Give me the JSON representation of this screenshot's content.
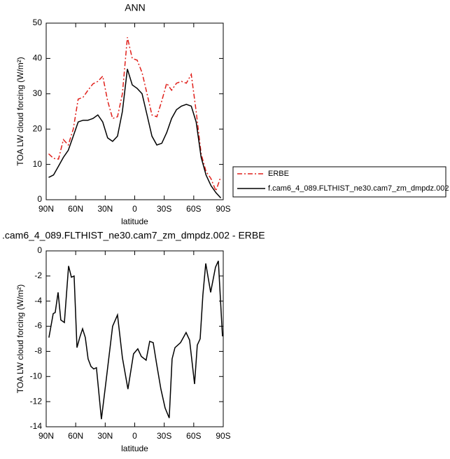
{
  "chart_data": [
    {
      "type": "line",
      "title": "ANN",
      "xlabel": "latitude",
      "ylabel": "TOA LW cloud forcing (W/m²)",
      "x": [
        87.5,
        82.5,
        77.5,
        72.5,
        67.5,
        62.5,
        57.5,
        52.5,
        47.5,
        42.5,
        37.5,
        32.5,
        27.5,
        22.5,
        17.5,
        12.5,
        7.5,
        2.5,
        -2.5,
        -7.5,
        -12.5,
        -17.5,
        -22.5,
        -27.5,
        -32.5,
        -37.5,
        -42.5,
        -47.5,
        -52.5,
        -57.5,
        -62.5,
        -67.5,
        -72.5,
        -77.5,
        -82.5,
        -87.5
      ],
      "series": [
        {
          "name": "ERBE",
          "color": "#e0201b",
          "line_style": "dashed",
          "values": [
            13,
            11.7,
            11.5,
            17,
            15.5,
            20,
            28.5,
            29,
            31,
            32.8,
            33.5,
            35,
            28,
            23,
            23.5,
            30,
            46,
            40,
            39.5,
            36,
            30,
            24,
            23.5,
            28,
            33,
            31,
            33,
            33.5,
            33,
            35.5,
            25,
            13,
            8,
            6,
            2.5,
            6.5
          ]
        },
        {
          "name": "f.cam6_4_089.FLTHIST_ne30.cam7_zm_dmpdz.002",
          "color": "#000000",
          "line_style": "solid",
          "values": [
            6.3,
            7,
            9.5,
            12,
            14,
            18,
            22,
            22.5,
            22.5,
            23,
            24,
            22,
            17.5,
            16.5,
            18,
            25,
            37,
            32.5,
            31.5,
            30,
            24,
            18,
            15.5,
            16,
            19,
            23,
            25.5,
            26.5,
            27,
            26.5,
            22,
            12,
            7,
            4,
            2,
            0.5
          ]
        }
      ],
      "xlim": [
        90,
        -90
      ],
      "xticks": [
        {
          "value": 90,
          "label": "90N"
        },
        {
          "value": 60,
          "label": "60N"
        },
        {
          "value": 30,
          "label": "30N"
        },
        0,
        {
          "value": -30,
          "label": "30S"
        },
        {
          "value": -60,
          "label": "60S"
        },
        {
          "value": -90,
          "label": "90S"
        }
      ],
      "ylim": [
        0,
        50
      ],
      "yticks": [
        0,
        10,
        20,
        30,
        40,
        50
      ],
      "legend": "outside-right"
    },
    {
      "type": "line",
      "title": ".cam6_4_089.FLTHIST_ne30.cam7_zm_dmpdz.002 - ERBE",
      "xlabel": "latitude",
      "ylabel": "TOA LW cloud forcing (W/m²)",
      "x": [
        87.2,
        82.9,
        80.8,
        77.9,
        75.1,
        71.5,
        67.2,
        64.4,
        61.6,
        58.7,
        55.9,
        53.0,
        50.2,
        47.4,
        44.5,
        41.7,
        38.9,
        33.9,
        28.9,
        22.5,
        17.5,
        12.5,
        6.9,
        1.2,
        -3.1,
        -6.7,
        -11.6,
        -15.2,
        -18.8,
        -22.3,
        -26.6,
        -30.9,
        -35.1,
        -38.0,
        -40.9,
        -46.6,
        -52.2,
        -55.8,
        -60.8,
        -63.6,
        -66.5,
        -69.3,
        -72.2,
        -77.2,
        -82.1,
        -85.0,
        -89.2
      ],
      "color": "#000000",
      "values": [
        -6.9,
        -5,
        -4.9,
        -3.3,
        -5.5,
        -5.7,
        -1.2,
        -2.1,
        -2.0,
        -7.7,
        -6.9,
        -6.2,
        -6.9,
        -8.6,
        -9.2,
        -9.4,
        -9.3,
        -13.4,
        -10.2,
        -6.0,
        -5.1,
        -8.5,
        -11.0,
        -8.2,
        -7.8,
        -8.4,
        -8.7,
        -7.2,
        -7.3,
        -9.0,
        -11.0,
        -12.5,
        -13.3,
        -8.6,
        -7.7,
        -7.3,
        -6.5,
        -7.1,
        -10.6,
        -7.5,
        -7.0,
        -3.5,
        -1.0,
        -3.3,
        -1.3,
        -0.8,
        -6.8
      ],
      "xlim": [
        90,
        -90
      ],
      "xticks": [
        {
          "value": 90,
          "label": "90N"
        },
        {
          "value": 60,
          "label": "60N"
        },
        {
          "value": 30,
          "label": "30N"
        },
        0,
        {
          "value": -30,
          "label": "30S"
        },
        {
          "value": -60,
          "label": "60S"
        },
        {
          "value": -90,
          "label": "90S"
        }
      ],
      "ylim": [
        -14,
        0
      ],
      "yticks": [
        -14,
        -12,
        -10,
        -8,
        -6,
        -4,
        -2,
        0
      ]
    }
  ]
}
